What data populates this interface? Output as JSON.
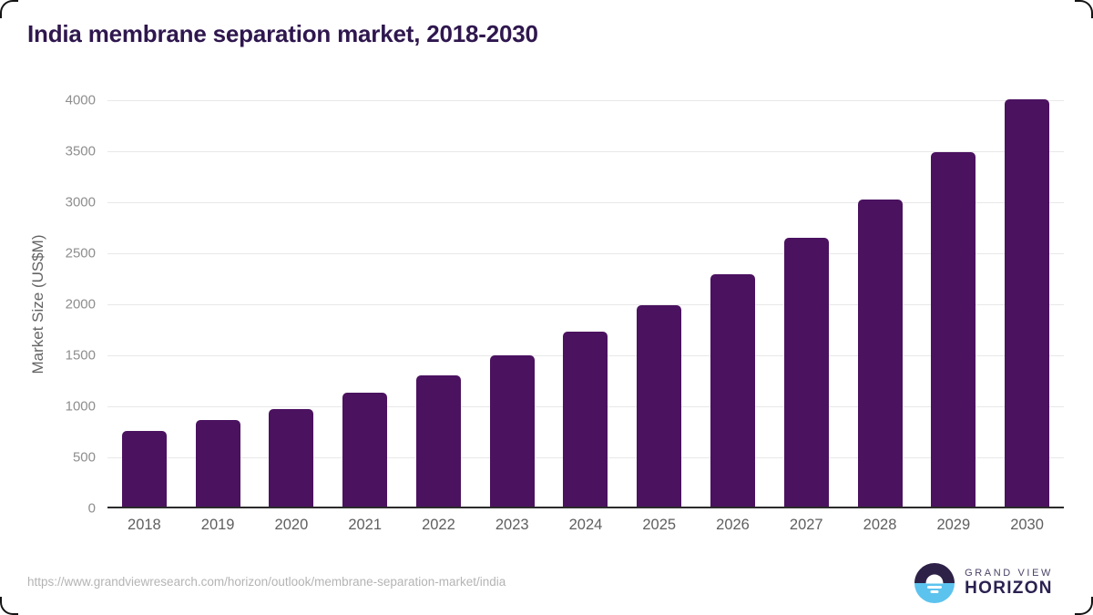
{
  "header": {
    "title": "India membrane separation market, 2018-2030"
  },
  "chart_data": {
    "type": "bar",
    "title": "India membrane separation market, 2018-2030",
    "categories": [
      "2018",
      "2019",
      "2020",
      "2021",
      "2022",
      "2023",
      "2024",
      "2025",
      "2026",
      "2027",
      "2028",
      "2029",
      "2030"
    ],
    "values": [
      740,
      850,
      955,
      1115,
      1285,
      1480,
      1710,
      1970,
      2280,
      2630,
      3010,
      3470,
      3990
    ],
    "xlabel": "",
    "ylabel": "Market Size (US$M)",
    "ylim": [
      0,
      4000
    ],
    "yticks": [
      0,
      500,
      1000,
      1500,
      2000,
      2500,
      3000,
      3500,
      4000
    ],
    "grid": true,
    "legend_position": "none",
    "bar_color": "#4b1260"
  },
  "footer": {
    "source_url": "https://www.grandviewresearch.com/horizon/outlook/membrane-separation-market/india",
    "logo": {
      "line1": "GRAND VIEW",
      "line2": "HORIZON"
    }
  },
  "colors": {
    "title_text": "#2f174e",
    "bar_fill": "#4b1260",
    "gridline": "#e8e8e8",
    "axis_line": "#2b2b2b",
    "tick_text": "#8e8e8e",
    "x_label_text": "#5f5f5f",
    "url_text": "#b4b4b4",
    "logo_dark_half": "#2d2147",
    "logo_light_half": "#5cc3ee"
  }
}
